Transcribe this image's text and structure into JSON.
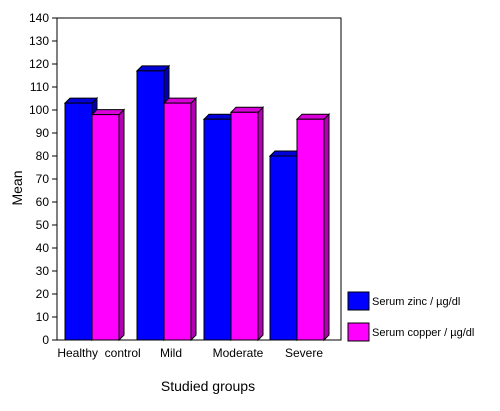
{
  "chart_data": {
    "type": "bar",
    "categories": [
      "Healthy  control",
      "Mild",
      "Moderate",
      "Severe"
    ],
    "series": [
      {
        "name": "Serum zinc / µg/dl",
        "values": [
          103,
          117,
          96,
          80
        ],
        "color": "#0000ff"
      },
      {
        "name": "Serum copper / µg/dl",
        "values": [
          98,
          103,
          99,
          96
        ],
        "color": "#ff00ff"
      }
    ],
    "xlabel": "Studied groups",
    "ylabel": "Mean",
    "ylim": [
      0,
      140
    ],
    "yticks": [
      "0",
      "10",
      "20",
      "30",
      "40",
      "50",
      "60",
      "70",
      "80",
      "90",
      "100",
      "110",
      "120",
      "130",
      "140"
    ],
    "grid": false,
    "style": "3d-bar",
    "legend_position": "right-bottom"
  }
}
